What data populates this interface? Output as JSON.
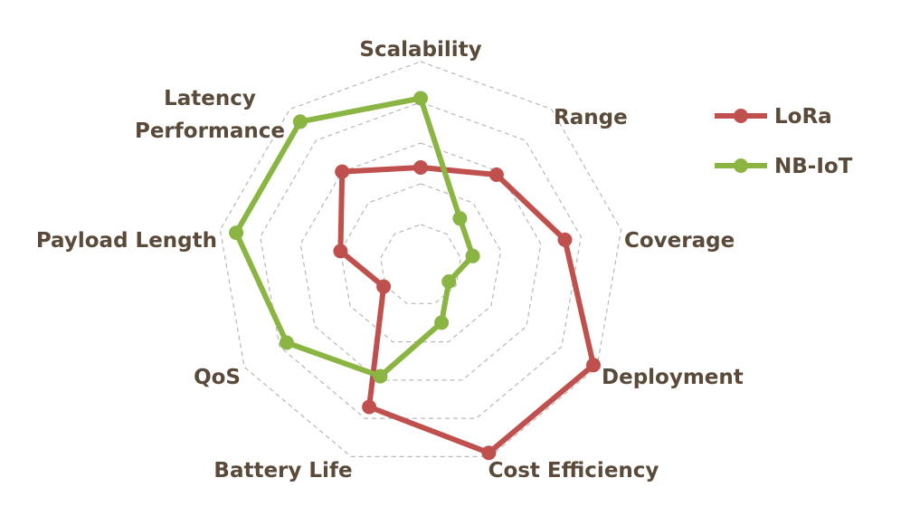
{
  "chart_data": {
    "type": "radar",
    "axes": [
      "Scalability",
      "Range",
      "Coverage",
      "Deployment",
      "Cost Efficiency",
      "Battery Life",
      "QoS",
      "Payload Length",
      "Latency Performance"
    ],
    "rlim": [
      0,
      5
    ],
    "rings": 5,
    "grid": true,
    "legend": "top-right",
    "series": [
      {
        "name": "LoRa",
        "color": "#c0504d",
        "values": [
          2.4,
          2.9,
          3.6,
          4.9,
          4.9,
          3.7,
          1.05,
          2.0,
          3.0
        ]
      },
      {
        "name": "NB-IoT",
        "color": "#8ab542",
        "values": [
          4.1,
          1.5,
          1.3,
          0.8,
          1.5,
          2.9,
          3.8,
          4.6,
          4.6
        ]
      }
    ]
  }
}
